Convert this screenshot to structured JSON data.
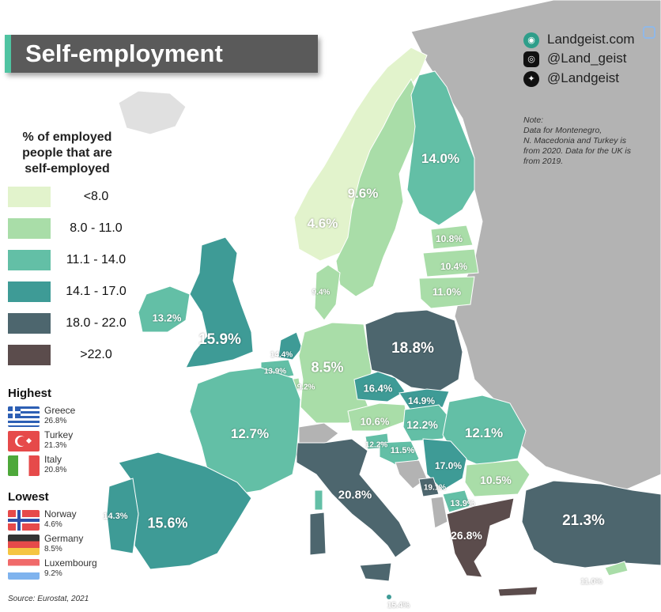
{
  "title": "Self-employment",
  "legend": {
    "title_lines": [
      "% of employed",
      "people that are",
      "self-employed"
    ],
    "classes": [
      {
        "label": "<8.0",
        "color": "#e2f3cc"
      },
      {
        "label": "8.0  - 11.0",
        "color": "#a9dda8"
      },
      {
        "label": "11.1 - 14.0",
        "color": "#63bfa6"
      },
      {
        "label": "14.1 - 17.0",
        "color": "#3e9b96"
      },
      {
        "label": "18.0 - 22.0",
        "color": "#4d666e"
      },
      {
        "label": ">22.0",
        "color": "#5b4c4c"
      }
    ]
  },
  "highest": {
    "heading": "Highest",
    "items": [
      {
        "country": "Greece",
        "value": "26.8%",
        "flag": "greece-flag"
      },
      {
        "country": "Turkey",
        "value": "21.3%",
        "flag": "turkey-flag"
      },
      {
        "country": "Italy",
        "value": "20.8%",
        "flag": "italy-flag"
      }
    ]
  },
  "lowest": {
    "heading": "Lowest",
    "items": [
      {
        "country": "Norway",
        "value": "4.6%",
        "flag": "norway-flag"
      },
      {
        "country": "Germany",
        "value": "8.5%",
        "flag": "germany-flag"
      },
      {
        "country": "Luxembourg",
        "value": "9.2%",
        "flag": "luxembourg-flag"
      }
    ]
  },
  "branding": {
    "website": "Landgeist.com",
    "instagram": "@Land_geist",
    "twitter": "@Landgeist",
    "icons": [
      "landgeist-logo-icon",
      "instagram-icon",
      "twitter-icon"
    ]
  },
  "note_lines": [
    "Note:",
    "Data for Montenegro,",
    "N. Macedonia and Turkey is",
    "from 2020. Data for the UK is",
    "from 2019."
  ],
  "source": "Source: Eurostat, 2021",
  "map_values": [
    {
      "value": "4.6%",
      "class": 0
    },
    {
      "value": "9.6%",
      "class": 1
    },
    {
      "value": "14.0%",
      "class": 2
    },
    {
      "value": "10.8%",
      "class": 1
    },
    {
      "value": "10.4%",
      "class": 1
    },
    {
      "value": "11.0%",
      "class": 1
    },
    {
      "value": "9.4%",
      "class": 1
    },
    {
      "value": "13.2%",
      "class": 2
    },
    {
      "value": "15.9%",
      "class": 3
    },
    {
      "value": "14.4%",
      "class": 3
    },
    {
      "value": "13.9%",
      "class": 2
    },
    {
      "value": "9.2%",
      "class": 1
    },
    {
      "value": "8.5%",
      "class": 1
    },
    {
      "value": "18.8%",
      "class": 4
    },
    {
      "value": "16.4%",
      "class": 3
    },
    {
      "value": "14.9%",
      "class": 3
    },
    {
      "value": "10.6%",
      "class": 1
    },
    {
      "value": "12.2%",
      "class": 2
    },
    {
      "value": "12.1%",
      "class": 2
    },
    {
      "value": "12.7%",
      "class": 2
    },
    {
      "value": "12.2%",
      "class": 2
    },
    {
      "value": "11.5%",
      "class": 2
    },
    {
      "value": "17.0%",
      "class": 3
    },
    {
      "value": "19.1%",
      "class": 4
    },
    {
      "value": "10.5%",
      "class": 1
    },
    {
      "value": "13.9%",
      "class": 2
    },
    {
      "value": "20.8%",
      "class": 4
    },
    {
      "value": "14.3%",
      "class": 3
    },
    {
      "value": "15.6%",
      "class": 3
    },
    {
      "value": "26.8%",
      "class": 5
    },
    {
      "value": "21.3%",
      "class": 4
    },
    {
      "value": "11.0%",
      "class": 1
    },
    {
      "value": "15.4%",
      "class": 3
    }
  ]
}
